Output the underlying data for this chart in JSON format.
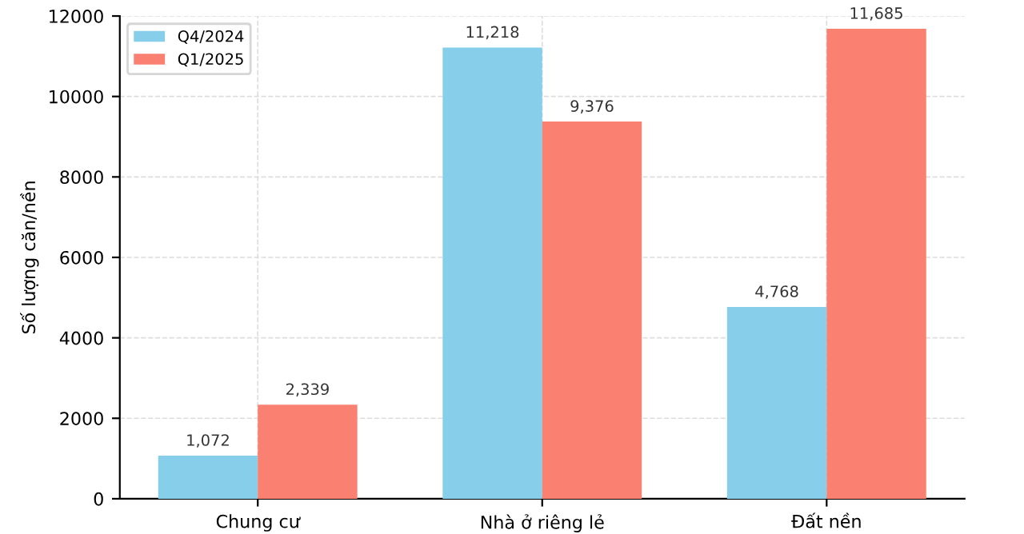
{
  "chart_data": {
    "type": "bar",
    "ylabel": "Số lượng căn/nền",
    "categories": [
      "Chung cư",
      "Nhà ở riêng lẻ",
      "Đất nền"
    ],
    "series": [
      {
        "name": "Q4/2024",
        "color": "#87ceeb",
        "values": [
          1072,
          11218,
          4768
        ],
        "value_labels": [
          "1,072",
          "11,218",
          "4,768"
        ]
      },
      {
        "name": "Q1/2025",
        "color": "#fa8072",
        "values": [
          2339,
          9376,
          11685
        ],
        "value_labels": [
          "2,339",
          "9,376",
          "11,685"
        ]
      }
    ],
    "ylim": [
      0,
      12000
    ],
    "yticks": [
      0,
      2000,
      4000,
      6000,
      8000,
      10000,
      12000
    ],
    "grid": true,
    "legend": "top left"
  }
}
